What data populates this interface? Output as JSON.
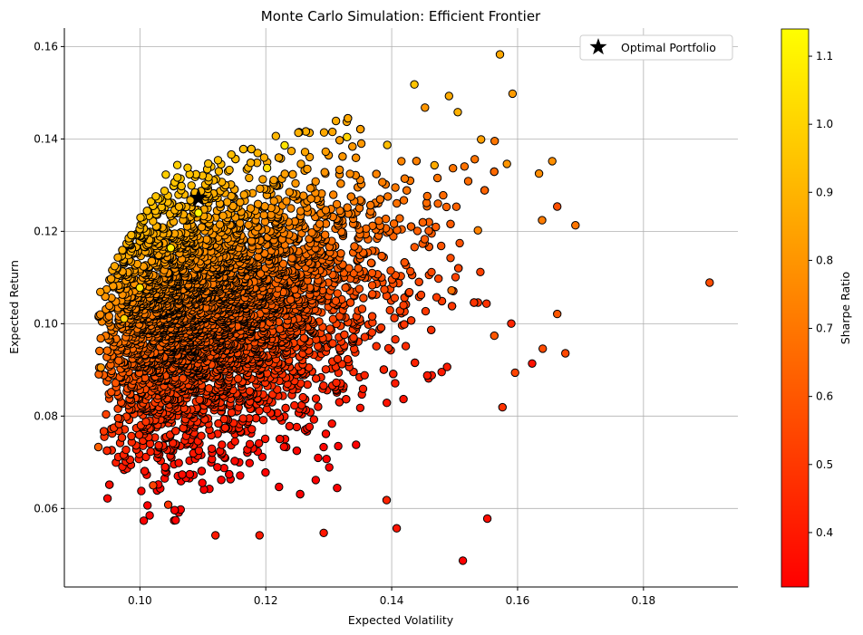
{
  "chart_data": {
    "type": "scatter",
    "title": "Monte Carlo Simulation: Efficient Frontier",
    "xlabel": "Expected Volatility",
    "ylabel": "Expected Return",
    "xlim": [
      0.088,
      0.195
    ],
    "ylim": [
      0.043,
      0.164
    ],
    "x_ticks": [
      0.1,
      0.12,
      0.14,
      0.16,
      0.18
    ],
    "x_tick_labels": [
      "0.10",
      "0.12",
      "0.14",
      "0.16",
      "0.18"
    ],
    "y_ticks": [
      0.06,
      0.08,
      0.1,
      0.12,
      0.14,
      0.16
    ],
    "y_tick_labels": [
      "0.06",
      "0.08",
      "0.10",
      "0.12",
      "0.14",
      "0.16"
    ],
    "grid": true,
    "legend": {
      "placement": "top-right",
      "entries": [
        "Optimal Portfolio"
      ]
    },
    "colorbar": {
      "label": "Sharpe Ratio",
      "colormap": "autumn",
      "range": [
        0.32,
        1.14
      ],
      "ticks": [
        0.4,
        0.5,
        0.6,
        0.7,
        0.8,
        0.9,
        1.0,
        1.1
      ],
      "tick_labels": [
        "0.4",
        "0.5",
        "0.6",
        "0.7",
        "0.8",
        "0.9",
        "1.0",
        "1.1"
      ],
      "color_low": "#ff0000",
      "color_high": "#ffff00"
    },
    "optimal_portfolio": {
      "name": "Optimal Portfolio",
      "x": 0.1093,
      "y": 0.1272,
      "marker": "star",
      "color": "#000000"
    },
    "series": [
      {
        "marker_edge_color": "#000000",
        "points": [
          [
            0.1572,
            0.1583,
            0.86
          ],
          [
            0.1436,
            0.1518,
            0.95
          ],
          [
            0.1491,
            0.1493,
            0.87
          ],
          [
            0.1592,
            0.1498,
            0.82
          ],
          [
            0.1505,
            0.1458,
            0.89
          ],
          [
            0.1542,
            0.1399,
            0.83
          ],
          [
            0.1583,
            0.1346,
            0.8
          ],
          [
            0.1655,
            0.1352,
            0.78
          ],
          [
            0.1634,
            0.1325,
            0.77
          ],
          [
            0.1692,
            0.1213,
            0.7
          ],
          [
            0.1639,
            0.1224,
            0.72
          ],
          [
            0.1905,
            0.1089,
            0.56
          ],
          [
            0.1663,
            0.1021,
            0.6
          ],
          [
            0.1676,
            0.0936,
            0.55
          ],
          [
            0.164,
            0.0946,
            0.56
          ],
          [
            0.1596,
            0.0894,
            0.54
          ],
          [
            0.1552,
            0.0578,
            0.36
          ],
          [
            0.1513,
            0.0487,
            0.32
          ],
          [
            0.1408,
            0.0557,
            0.38
          ],
          [
            0.1392,
            0.0618,
            0.43
          ],
          [
            0.112,
            0.0542,
            0.4
          ],
          [
            0.119,
            0.0542,
            0.4
          ],
          [
            0.1292,
            0.0547,
            0.39
          ],
          [
            0.1021,
            0.065,
            0.53
          ],
          [
            0.1045,
            0.0608,
            0.48
          ],
          [
            0.0934,
            0.0733,
            0.63
          ],
          [
            0.0938,
            0.0905,
            0.8
          ],
          [
            0.1576,
            0.0819,
            0.48
          ],
          [
            0.1563,
            0.0974,
            0.6
          ],
          [
            0.1495,
            0.1072,
            0.68
          ],
          [
            0.1537,
            0.1202,
            0.74
          ],
          [
            0.1468,
            0.1343,
            0.87
          ],
          [
            0.1393,
            0.1387,
            0.93
          ],
          [
            0.1329,
            0.1404,
            1.0
          ],
          [
            0.1202,
            0.1337,
            1.04
          ],
          [
            0.123,
            0.1386,
            1.05
          ],
          [
            0.1093,
            0.124,
            1.12
          ],
          [
            0.1049,
            0.1164,
            1.08
          ],
          [
            0.1,
            0.1078,
            1.05
          ],
          [
            0.0975,
            0.1011,
            1.0
          ]
        ]
      }
    ]
  }
}
